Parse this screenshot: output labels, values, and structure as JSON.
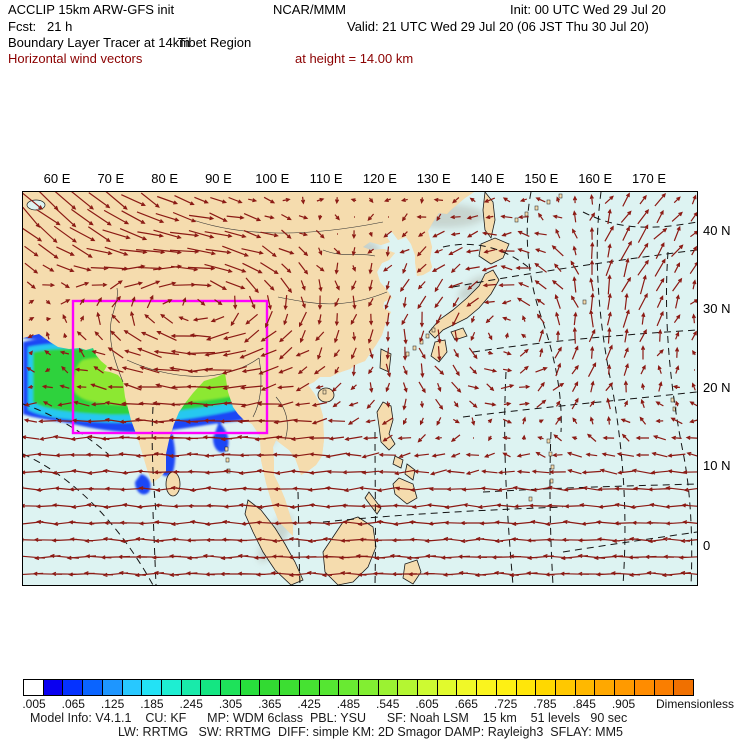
{
  "header": {
    "title": "ACCLIP 15km ARW-GFS init",
    "org": "NCAR/MMM",
    "init": "Init: 00 UTC Wed 29 Jul 20",
    "fcst": "Fcst:   21 h",
    "valid": "Valid: 21 UTC Wed 29 Jul 20 (06 JST Thu 30 Jul 20)",
    "field": "Boundary Layer Tracer at 14km",
    "region": "Tibet Region",
    "vectors": "Horizontal wind vectors",
    "height": "at height = 14.00 km"
  },
  "axes": {
    "x_ticks": [
      "60 E",
      "70 E",
      "80 E",
      "90 E",
      "100 E",
      "110 E",
      "120 E",
      "130 E",
      "140 E",
      "150 E",
      "160 E",
      "170 E"
    ],
    "y_ticks": [
      "40 N",
      "30 N",
      "20 N",
      "10 N",
      "0"
    ]
  },
  "colorbar": {
    "labels": [
      ".005",
      ".065",
      ".125",
      ".185",
      ".245",
      ".305",
      ".365",
      ".425",
      ".485",
      ".545",
      ".605",
      ".665",
      ".725",
      ".785",
      ".845",
      ".905"
    ],
    "units": "Dimensionless",
    "colors": [
      "#ffffff",
      "#0a00f0",
      "#0532ff",
      "#0a64ff",
      "#1e96ff",
      "#28c8ff",
      "#23e2f5",
      "#1eeed2",
      "#19eaaa",
      "#14e682",
      "#1ee25a",
      "#28de3c",
      "#32da32",
      "#3cde32",
      "#46e232",
      "#55e632",
      "#69ea32",
      "#82ee32",
      "#9bf232",
      "#b4f632",
      "#cdfa32",
      "#e1fa2d",
      "#f0f828",
      "#faf41e",
      "#fef014",
      "#ffe60a",
      "#ffd800",
      "#ffc800",
      "#ffb800",
      "#ffa800",
      "#ff9a00",
      "#ff8c00",
      "#fa7e00",
      "#f07000"
    ]
  },
  "footer": {
    "line1": "Model Info: V4.1.1    CU: KF      MP: WDM 6class  PBL: YSU      SF: Noah LSM    15 km    51 levels   90 sec",
    "line2": "LW: RRTMG   SW: RRTMG  DIFF: simple KM: 2D Smagor DAMP: Rayleigh3  SFLAY: MM5"
  },
  "colors": {
    "wind_arrow": "#8b1a14",
    "header_accent": "#8b0000",
    "land": "#f5dcae",
    "ocean": "#ddf3f2",
    "region_box": "#ff00ff"
  }
}
